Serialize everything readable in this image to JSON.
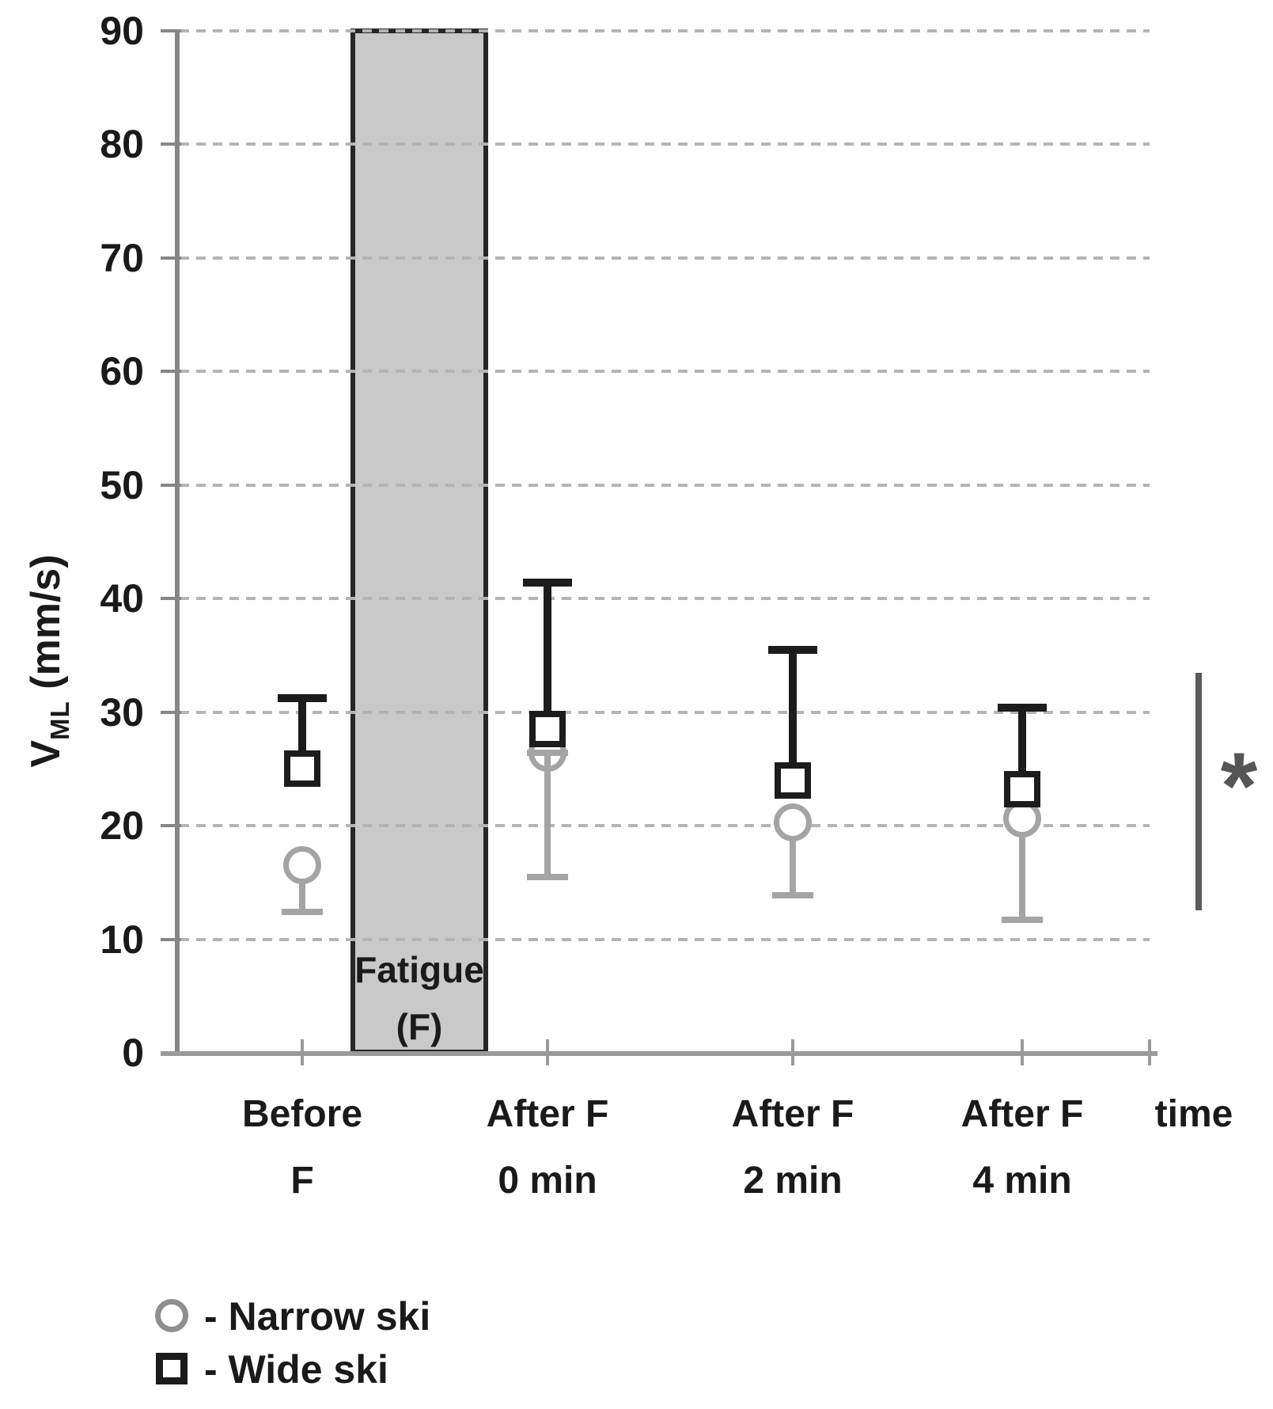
{
  "chart_data": {
    "type": "scatter",
    "title": "",
    "ylabel": "V_ML (mm/s)",
    "xlabel": "time",
    "ylim": [
      0,
      90
    ],
    "yticks": [
      0,
      10,
      20,
      30,
      40,
      50,
      60,
      70,
      80,
      90
    ],
    "grid": "dashed horizontal",
    "legend_position": "bottom-left",
    "categories": [
      "Before F",
      "After F 0 min",
      "After F 2 min",
      "After F 4 min"
    ],
    "category_label_lines": [
      [
        "Before",
        "F"
      ],
      [
        "After F",
        "0 min"
      ],
      [
        "After F",
        "2 min"
      ],
      [
        "After F",
        "4 min"
      ]
    ],
    "series": [
      {
        "name": "Narrow ski",
        "marker": "circle",
        "color": "#a4a4a4",
        "values": [
          16.5,
          26.4,
          20.3,
          20.6
        ],
        "err_low_end": [
          12.4,
          15.5,
          13.9,
          11.7
        ],
        "err_direction": "minus",
        "center_cap": [
          false,
          true,
          false,
          false
        ]
      },
      {
        "name": "Wide ski",
        "marker": "square",
        "color": "#1c1c1c",
        "values": [
          25.0,
          28.5,
          24.0,
          23.2
        ],
        "err_high_end": [
          31.2,
          41.4,
          35.5,
          30.4
        ],
        "err_direction": "plus"
      }
    ],
    "fatigue_band": {
      "label": "Fatigue (F)",
      "position": "between Before F and After F 0 min",
      "y_span": [
        0,
        90.5
      ]
    },
    "significance_bar": {
      "symbol": "*",
      "y_span": [
        12.5,
        33.4
      ],
      "x_position": "right of plot"
    }
  },
  "band": {
    "label_line1": "Fatigue",
    "label_line2": "(F)"
  },
  "axis": {
    "ylabel_v": "V",
    "ylabel_sub": "ML",
    "ylabel_unit": " (mm/s)",
    "xlabel": "time"
  },
  "significance": {
    "symbol": "*"
  },
  "legend": {
    "items": [
      {
        "marker": "circle",
        "label": "- Narrow ski"
      },
      {
        "marker": "square",
        "label": "- Wide ski"
      }
    ]
  }
}
